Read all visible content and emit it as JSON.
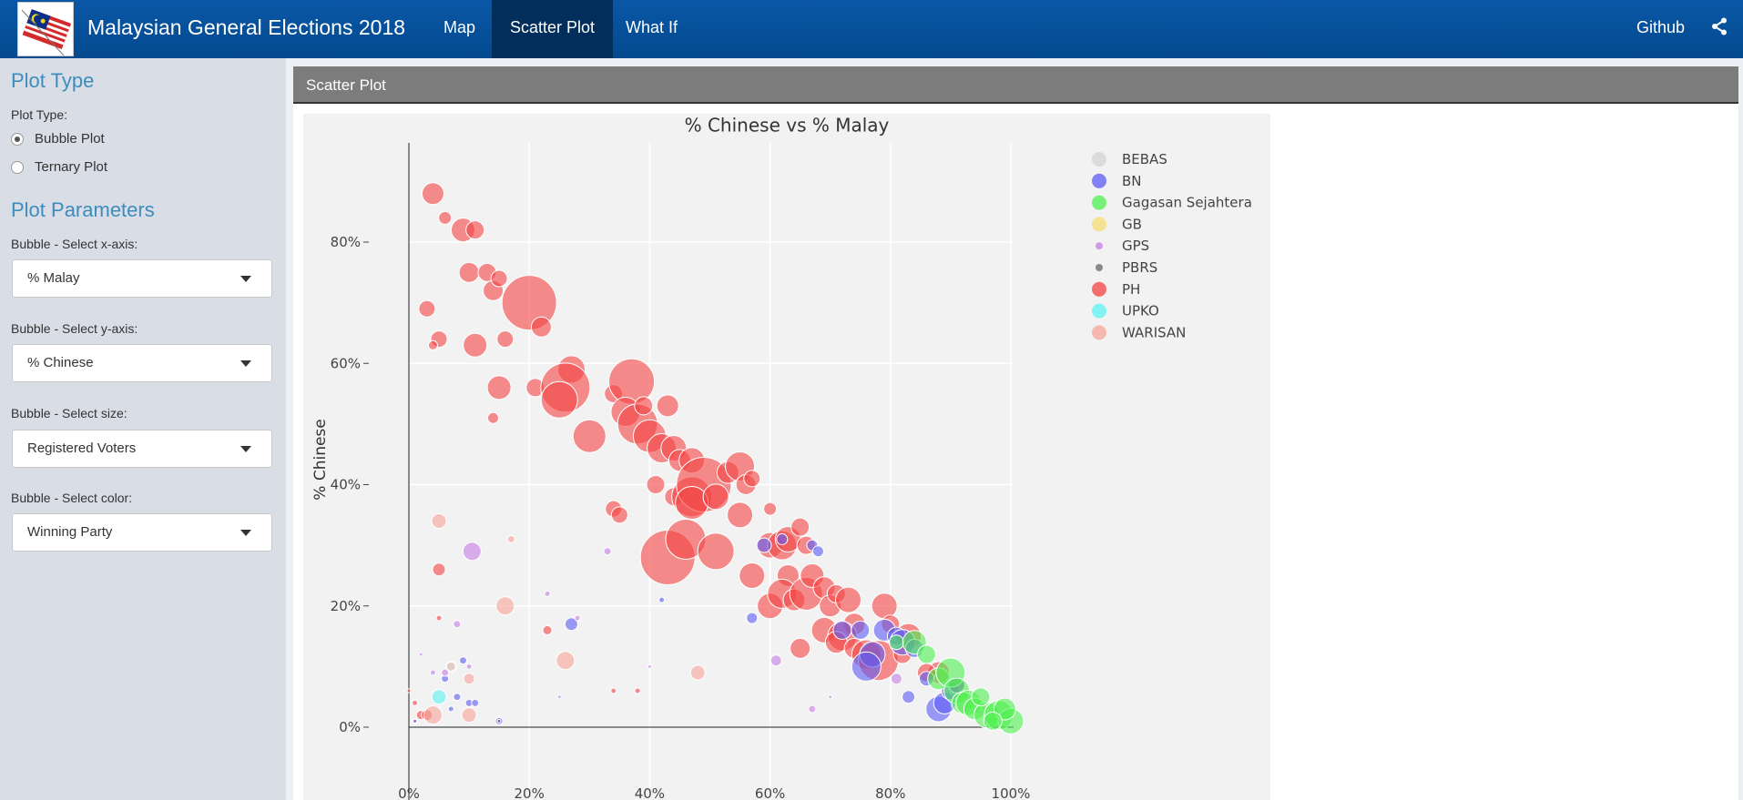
{
  "header": {
    "title": "Malaysian General Elections 2018",
    "nav": [
      "Map",
      "Scatter Plot",
      "What If"
    ],
    "active_nav": "Scatter Plot",
    "github": "Github"
  },
  "sidebar": {
    "plot_type_heading": "Plot Type",
    "plot_type_label": "Plot Type:",
    "plot_type_options": [
      "Bubble Plot",
      "Ternary Plot"
    ],
    "plot_type_selected": "Bubble Plot",
    "params_heading": "Plot Parameters",
    "x_label": "Bubble - Select x-axis:",
    "x_value": "% Malay",
    "y_label": "Bubble - Select y-axis:",
    "y_value": "% Chinese",
    "size_label": "Bubble - Select size:",
    "size_value": "Registered Voters",
    "color_label": "Bubble - Select color:",
    "color_value": "Winning Party"
  },
  "panel": {
    "title": "Scatter Plot"
  },
  "chart_data": {
    "type": "scatter",
    "title": "% Chinese vs % Malay",
    "xlabel": "",
    "ylabel": "% Chinese",
    "xlim": [
      0,
      100
    ],
    "ylim": [
      -7,
      97
    ],
    "xticks": [
      "0%",
      "20%",
      "40%",
      "60%",
      "80%",
      "100%"
    ],
    "yticks": [
      "0%",
      "20%",
      "40%",
      "60%",
      "80%"
    ],
    "grid": true,
    "legend_placement": "right",
    "legend": [
      {
        "name": "BEBAS",
        "color": "#d3d3d3"
      },
      {
        "name": "BN",
        "color": "#5b5bf5"
      },
      {
        "name": "Gagasan Sejahtera",
        "color": "#4ef04e"
      },
      {
        "name": "GB",
        "color": "#f6dc72"
      },
      {
        "name": "GPS",
        "color": "#c77de6"
      },
      {
        "name": "PBRS",
        "color": "#666666"
      },
      {
        "name": "PH",
        "color": "#f44242"
      },
      {
        "name": "UPKO",
        "color": "#5cf2f2"
      },
      {
        "name": "WARISAN",
        "color": "#f6a398"
      }
    ],
    "series": [
      {
        "name": "PH",
        "color": "#f44242",
        "points": [
          [
            4,
            88,
            12
          ],
          [
            6,
            84,
            7
          ],
          [
            9,
            82,
            13
          ],
          [
            11,
            82,
            10
          ],
          [
            3,
            69,
            9
          ],
          [
            5,
            64,
            9
          ],
          [
            4,
            63,
            5
          ],
          [
            11,
            63,
            13
          ],
          [
            10,
            75,
            11
          ],
          [
            13,
            75,
            10
          ],
          [
            14,
            72,
            11
          ],
          [
            15,
            74,
            9
          ],
          [
            20,
            70,
            30
          ],
          [
            22,
            66,
            11
          ],
          [
            16,
            64,
            9
          ],
          [
            14,
            51,
            6
          ],
          [
            15,
            56,
            13
          ],
          [
            21,
            56,
            10
          ],
          [
            27,
            59,
            15
          ],
          [
            26,
            56,
            27
          ],
          [
            25,
            54,
            20
          ],
          [
            30,
            48,
            18
          ],
          [
            34,
            55,
            10
          ],
          [
            37,
            57,
            25
          ],
          [
            36,
            52,
            16
          ],
          [
            38,
            50,
            22
          ],
          [
            40,
            48,
            18
          ],
          [
            42,
            46,
            16
          ],
          [
            44,
            46,
            14
          ],
          [
            39,
            53,
            10
          ],
          [
            43,
            53,
            12
          ],
          [
            45,
            44,
            12
          ],
          [
            47,
            44,
            14
          ],
          [
            41,
            40,
            10
          ],
          [
            44,
            38,
            10
          ],
          [
            47,
            38,
            22
          ],
          [
            49,
            40,
            30
          ],
          [
            47,
            37,
            18
          ],
          [
            51,
            38,
            14
          ],
          [
            53,
            42,
            12
          ],
          [
            55,
            43,
            16
          ],
          [
            56,
            40,
            11
          ],
          [
            55,
            35,
            14
          ],
          [
            57,
            41,
            9
          ],
          [
            60,
            36,
            7
          ],
          [
            34,
            36,
            9
          ],
          [
            35,
            35,
            9
          ],
          [
            43,
            28,
            30
          ],
          [
            46,
            31,
            22
          ],
          [
            51,
            29,
            20
          ],
          [
            57,
            25,
            14
          ],
          [
            60,
            30,
            14
          ],
          [
            62,
            30,
            16
          ],
          [
            63,
            31,
            14
          ],
          [
            65,
            33,
            10
          ],
          [
            66,
            30,
            10
          ],
          [
            63,
            25,
            12
          ],
          [
            60,
            20,
            14
          ],
          [
            62,
            22,
            16
          ],
          [
            64,
            21,
            12
          ],
          [
            66,
            22,
            18
          ],
          [
            67,
            25,
            13
          ],
          [
            69,
            23,
            12
          ],
          [
            70,
            20,
            12
          ],
          [
            71,
            22,
            10
          ],
          [
            73,
            21,
            14
          ],
          [
            74,
            17,
            12
          ],
          [
            69,
            16,
            14
          ],
          [
            72,
            15,
            16
          ],
          [
            71,
            14,
            12
          ],
          [
            74,
            13,
            11
          ],
          [
            76,
            12,
            16
          ],
          [
            78,
            11,
            22
          ],
          [
            65,
            13,
            11
          ],
          [
            79,
            20,
            14
          ],
          [
            80,
            17,
            10
          ],
          [
            83,
            15,
            14
          ],
          [
            82,
            12,
            10
          ],
          [
            88,
            9,
            12
          ],
          [
            86,
            9,
            10
          ],
          [
            91,
            7,
            8
          ],
          [
            5,
            26,
            7
          ],
          [
            23,
            16,
            5
          ],
          [
            5,
            18,
            3
          ],
          [
            1,
            1,
            3
          ],
          [
            2,
            2,
            5
          ],
          [
            3,
            2,
            6
          ],
          [
            34,
            6,
            3
          ],
          [
            38,
            6,
            3
          ],
          [
            1,
            4,
            3
          ],
          [
            0,
            6,
            2
          ]
        ]
      },
      {
        "name": "WARISAN",
        "color": "#f6a398",
        "points": [
          [
            5,
            34,
            8
          ],
          [
            16,
            20,
            10
          ],
          [
            26,
            11,
            10
          ],
          [
            48,
            9,
            8
          ],
          [
            17,
            31,
            4
          ],
          [
            10,
            8,
            6
          ],
          [
            10,
            2,
            8
          ],
          [
            4,
            2,
            10
          ],
          [
            7,
            10,
            6
          ]
        ]
      },
      {
        "name": "BN",
        "color": "#5b5bf5",
        "points": [
          [
            57,
            18,
            6
          ],
          [
            59,
            30,
            8
          ],
          [
            62,
            31,
            6
          ],
          [
            67,
            30,
            6
          ],
          [
            68,
            29,
            6
          ],
          [
            72,
            16,
            10
          ],
          [
            75,
            16,
            10
          ],
          [
            77,
            12,
            14
          ],
          [
            76,
            10,
            16
          ],
          [
            79,
            16,
            12
          ],
          [
            81,
            15,
            10
          ],
          [
            82,
            14,
            14
          ],
          [
            84,
            13,
            10
          ],
          [
            86,
            8,
            8
          ],
          [
            83,
            5,
            7
          ],
          [
            88,
            3,
            14
          ],
          [
            89,
            4,
            12
          ],
          [
            90,
            6,
            10
          ],
          [
            91,
            7,
            9
          ],
          [
            1,
            1,
            2
          ],
          [
            6,
            8,
            4
          ],
          [
            8,
            5,
            4
          ],
          [
            9,
            11,
            4
          ],
          [
            10,
            4,
            4
          ],
          [
            11,
            4,
            4
          ],
          [
            7,
            3,
            3
          ],
          [
            15,
            1,
            4
          ],
          [
            27,
            17,
            7
          ],
          [
            42,
            21,
            3
          ]
        ]
      },
      {
        "name": "Gagasan Sejahtera",
        "color": "#4ef04e",
        "points": [
          [
            81,
            14,
            8
          ],
          [
            84,
            14,
            13
          ],
          [
            88,
            8,
            12
          ],
          [
            90,
            9,
            16
          ],
          [
            91,
            6,
            14
          ],
          [
            92,
            4,
            12
          ],
          [
            93,
            4,
            14
          ],
          [
            94,
            3,
            12
          ],
          [
            96,
            2,
            14
          ],
          [
            98,
            2,
            16
          ],
          [
            100,
            1,
            14
          ],
          [
            99,
            3,
            12
          ],
          [
            95,
            5,
            10
          ],
          [
            97,
            1,
            10
          ],
          [
            86,
            12,
            10
          ]
        ]
      },
      {
        "name": "GPS",
        "color": "#c77de6",
        "points": [
          [
            10.5,
            29,
            10
          ],
          [
            8,
            17,
            4
          ],
          [
            23,
            22,
            3
          ],
          [
            28,
            18,
            3
          ],
          [
            33,
            29,
            4
          ],
          [
            25,
            5,
            2
          ],
          [
            40,
            10,
            2
          ],
          [
            61,
            11,
            6
          ],
          [
            67,
            3,
            4
          ],
          [
            70,
            5,
            2
          ],
          [
            81,
            8,
            6
          ],
          [
            2,
            12,
            2
          ],
          [
            4,
            9,
            3
          ],
          [
            6,
            9,
            4
          ],
          [
            10,
            10,
            3
          ]
        ]
      },
      {
        "name": "PBRS",
        "color": "#666666",
        "points": [
          [
            15,
            1,
            2
          ]
        ]
      },
      {
        "name": "UPKO",
        "color": "#5cf2f2",
        "points": [
          [
            5,
            5,
            8
          ]
        ]
      },
      {
        "name": "BEBAS",
        "color": "#d3d3d3",
        "points": [
          [
            7,
            10,
            5
          ]
        ]
      }
    ]
  }
}
